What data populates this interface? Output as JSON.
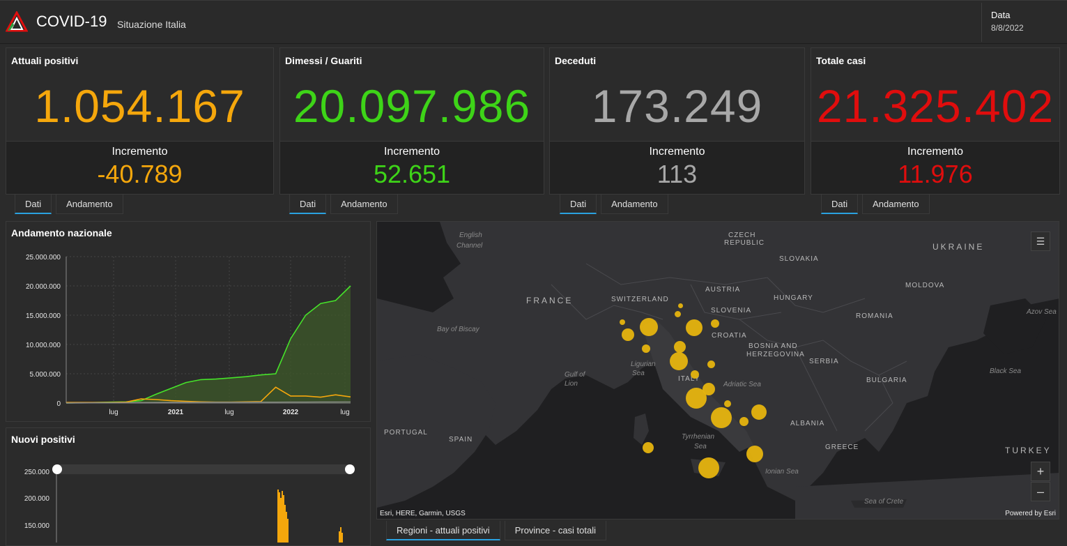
{
  "header": {
    "title": "COVID-19",
    "subtitle": "Situazione Italia",
    "date_label": "Data",
    "date_value": "8/8/2022"
  },
  "cards": [
    {
      "title": "Attuali positivi",
      "value": "1.054.167",
      "increment_label": "Incremento",
      "increment": "-40.789",
      "color": "#f5a70c"
    },
    {
      "title": "Dimessi / Guariti",
      "value": "20.097.986",
      "increment_label": "Incremento",
      "increment": "52.651",
      "color": "#3ed418"
    },
    {
      "title": "Deceduti",
      "value": "173.249",
      "increment_label": "Incremento",
      "increment": "113",
      "color": "#a8a8a8"
    },
    {
      "title": "Totale casi",
      "value": "21.325.402",
      "increment_label": "Incremento",
      "increment": "11.976",
      "color": "#e00d0d"
    }
  ],
  "card_tabs": [
    {
      "active": "Dati",
      "other": "Andamento"
    },
    {
      "active": "Dati",
      "other": "Andamento"
    },
    {
      "active": "Dati",
      "other": "Andamento"
    },
    {
      "active": "Dati",
      "other": "Andamento"
    }
  ],
  "national_chart": {
    "title": "Andamento nazionale",
    "chart_data": {
      "type": "area",
      "y_ticks": [
        "25.000.000",
        "20.000.000",
        "15.000.000",
        "10.000.000",
        "5.000.000",
        "0"
      ],
      "x_ticks": [
        "lug",
        "2021",
        "lug",
        "2022",
        "lug"
      ],
      "ylim": [
        0,
        25000000
      ],
      "series": [
        {
          "color": "#46e32a",
          "values": [
            0,
            50000,
            100000,
            150000,
            200000,
            400000,
            1500000,
            2500000,
            3500000,
            4000000,
            4100000,
            4300000,
            4500000,
            4800000,
            5000000,
            11000000,
            15000000,
            17000000,
            17500000,
            20000000
          ]
        },
        {
          "color": "#f5a70c",
          "values": [
            100000,
            100000,
            100000,
            100000,
            150000,
            700000,
            600000,
            400000,
            300000,
            200000,
            150000,
            150000,
            200000,
            250000,
            2700000,
            1200000,
            1200000,
            1000000,
            1400000,
            1050000
          ]
        },
        {
          "color": "#8a8a8a",
          "values": [
            0,
            20000,
            40000,
            40000,
            60000,
            70000,
            80000,
            100000,
            110000,
            120000,
            125000,
            130000,
            135000,
            140000,
            145000,
            150000,
            160000,
            165000,
            170000,
            173000
          ]
        }
      ]
    }
  },
  "new_positives_chart": {
    "title": "Nuovi positivi",
    "chart_data": {
      "type": "bar",
      "y_ticks": [
        "250.000",
        "200.000",
        "150.000"
      ],
      "ylim": [
        0,
        250000
      ]
    }
  },
  "map": {
    "labels": [
      "CZECH",
      "REPUBLIC",
      "UKRAINE",
      "SLOVAKIA",
      "MOLDOVA",
      "FRANCE",
      "AUSTRIA",
      "HUNGARY",
      "SWITZERLAND",
      "SLOVENIA",
      "CROATIA",
      "ROMANIA",
      "BOSNIA AND",
      "HERZEGOVINA",
      "SERBIA",
      "BULGARIA",
      "ITALY",
      "ALBANIA",
      "PORTUGAL",
      "SPAIN",
      "GREECE",
      "TURKEY"
    ],
    "seas": [
      "English",
      "Channel",
      "Bay of Biscay",
      "Gulf of",
      "Lion",
      "Ligurian",
      "Sea",
      "Adriatic Sea",
      "Tyrrhenian",
      "Sea",
      "Ionian Sea",
      "Black Sea",
      "Azov Sea",
      "Sea of Crete"
    ],
    "attribution": "Esri, HERE, Garmin, USGS",
    "powered": "Powered by Esri",
    "zoom_in": "+",
    "zoom_out": "–",
    "bubble_color": "#e6b40f"
  },
  "map_tabs": {
    "active": "Regioni - attuali positivi",
    "other": "Province - casi totali"
  }
}
